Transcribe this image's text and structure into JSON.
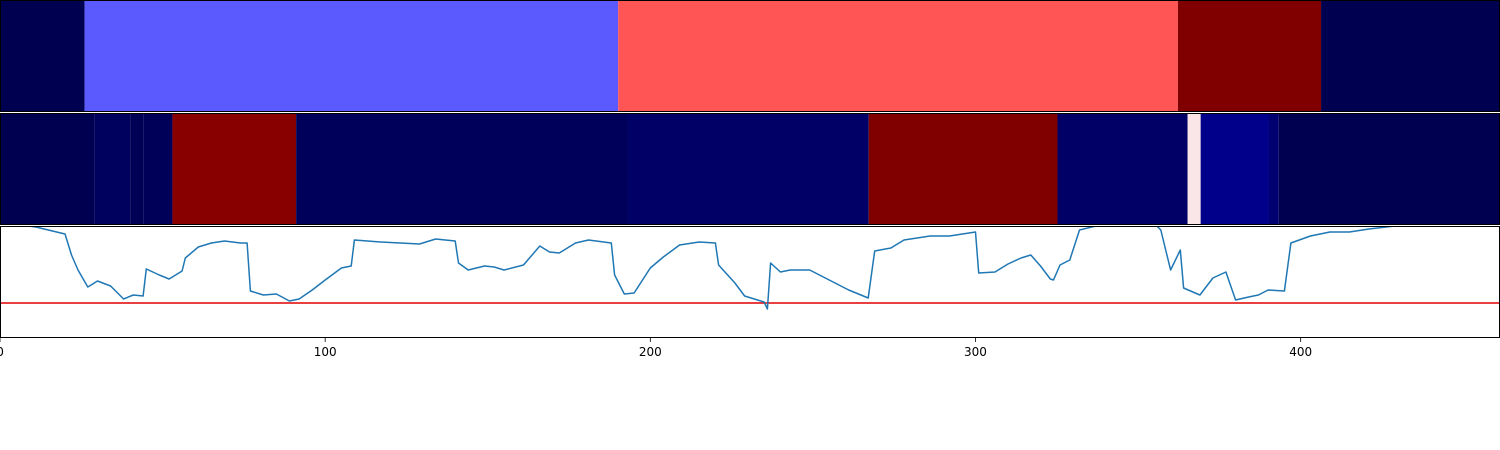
{
  "chart_data": [
    {
      "type": "heatmap",
      "xlim": [
        0,
        461
      ],
      "edges": [
        0,
        26,
        190,
        362,
        406,
        461
      ],
      "colors": [
        "#000050",
        "#5a5aff",
        "#ff5555",
        "#800000",
        "#000050"
      ]
    },
    {
      "type": "heatmap",
      "xlim": [
        0,
        461
      ],
      "edges": [
        0,
        29,
        40,
        44,
        53,
        91,
        193,
        267,
        325,
        365,
        369,
        390,
        393,
        461
      ],
      "colors": [
        "#000050",
        "#00005f",
        "#000055",
        "#000058",
        "#880000",
        "#00005a",
        "#000066",
        "#800000",
        "#000066",
        "#fae6e6",
        "#00008a",
        "#000070",
        "#000050"
      ]
    },
    {
      "type": "line",
      "xlim": [
        0,
        461
      ],
      "ylim": [
        0,
        1.12
      ],
      "xticks": [
        0,
        100,
        200,
        300,
        400
      ],
      "color": "#1f77b4",
      "hline": 0.35,
      "hline_color": "#e00000",
      "x": [
        0,
        11,
        20,
        22,
        24,
        27,
        30,
        34,
        38,
        41,
        44,
        45,
        49,
        52,
        56,
        57,
        61,
        65,
        69,
        74,
        76,
        77,
        81,
        85,
        89,
        92,
        96,
        100,
        105,
        108,
        109,
        117,
        123,
        129,
        134,
        140,
        141,
        144,
        149,
        152,
        155,
        161,
        166,
        169,
        172,
        177,
        181,
        188,
        189,
        192,
        195,
        200,
        204,
        209,
        215,
        220,
        221,
        226,
        229,
        235,
        236,
        237,
        240,
        243,
        249,
        255,
        261,
        267,
        269,
        274,
        278,
        286,
        292,
        300,
        301,
        306,
        310,
        314,
        317,
        320,
        323,
        324,
        326,
        329,
        332,
        337,
        341,
        354,
        357,
        360,
        363,
        364,
        369,
        373,
        377,
        380,
        384,
        387,
        390,
        395,
        397,
        403,
        409,
        415,
        421,
        429,
        440
      ],
      "values": [
        1.16,
        1.11,
        1.04,
        0.83,
        0.68,
        0.51,
        0.57,
        0.52,
        0.39,
        0.43,
        0.42,
        0.69,
        0.63,
        0.59,
        0.67,
        0.8,
        0.91,
        0.95,
        0.97,
        0.95,
        0.95,
        0.47,
        0.43,
        0.44,
        0.37,
        0.39,
        0.48,
        0.58,
        0.7,
        0.72,
        0.98,
        0.96,
        0.95,
        0.94,
        0.99,
        0.97,
        0.75,
        0.68,
        0.72,
        0.71,
        0.68,
        0.73,
        0.92,
        0.86,
        0.85,
        0.95,
        0.98,
        0.95,
        0.63,
        0.44,
        0.45,
        0.7,
        0.81,
        0.93,
        0.96,
        0.95,
        0.73,
        0.55,
        0.42,
        0.36,
        0.29,
        0.75,
        0.66,
        0.68,
        0.68,
        0.58,
        0.48,
        0.4,
        0.87,
        0.9,
        0.98,
        1.02,
        1.02,
        1.06,
        0.65,
        0.66,
        0.74,
        0.8,
        0.83,
        0.72,
        0.59,
        0.58,
        0.73,
        0.78,
        1.08,
        1.12,
        1.16,
        1.18,
        1.08,
        0.68,
        0.88,
        0.5,
        0.43,
        0.6,
        0.66,
        0.38,
        0.41,
        0.43,
        0.48,
        0.47,
        0.95,
        1.02,
        1.06,
        1.06,
        1.09,
        1.12,
        1.18
      ]
    }
  ]
}
